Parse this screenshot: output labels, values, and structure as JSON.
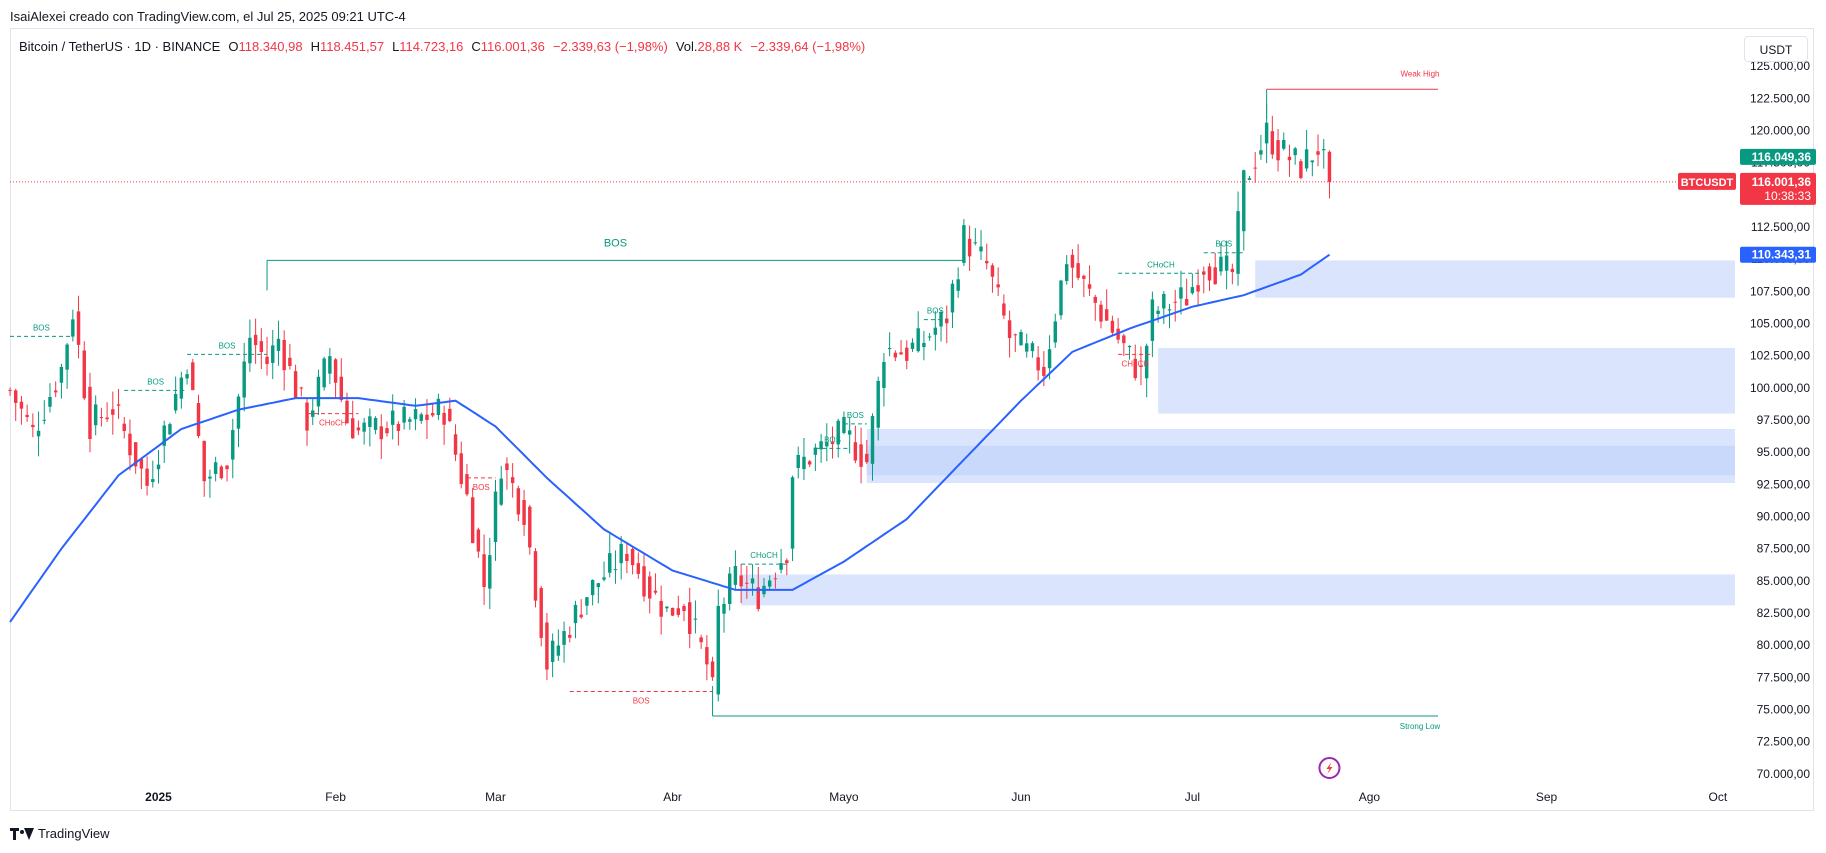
{
  "credit": "IsaiAlexei creado con TradingView.com, el Jul 25, 2025 09:21 UTC-4",
  "legend": {
    "symbol": "Bitcoin / TetherUS · 1D · BINANCE",
    "o_label": "O",
    "o_value": "118.340,98",
    "h_label": "H",
    "h_value": "118.451,57",
    "l_label": "L",
    "l_value": "114.723,16",
    "c_label": "C",
    "c_value": "116.001,36",
    "change": "−2.339,63 (−1,98%)",
    "vol_label": "Vol.",
    "vol_value": "28,88 K",
    "vol_change": "−2.339,64 (−1,98%)"
  },
  "currency_button": "USDT",
  "brand": "TradingView",
  "colors": {
    "up": "#089981",
    "down": "#f23645",
    "ma": "#2962ff",
    "zone": "#bbd0fb",
    "price_line": "#f23645"
  },
  "chart_data": {
    "type": "candlestick",
    "ylim": [
      68750,
      126250
    ],
    "y_ticks": [
      70000,
      72500,
      75000,
      77500,
      80000,
      82500,
      85000,
      87500,
      90000,
      92500,
      95000,
      97500,
      100000,
      102500,
      105000,
      107500,
      110000,
      112500,
      115000,
      117500,
      120000,
      122500,
      125000
    ],
    "y_tick_labels": [
      "70.000,00",
      "72.500,00",
      "75.000,00",
      "77.500,00",
      "80.000,00",
      "82.500,00",
      "85.000,00",
      "87.500,00",
      "90.000,00",
      "92.500,00",
      "95.000,00",
      "97.500,00",
      "100.000,00",
      "102.500,00",
      "105.000,00",
      "107.500,00",
      "110.000,00",
      "112.500,00",
      "115.000,00",
      "117.500,00",
      "120.000,00",
      "122.500,00",
      "125.000,00"
    ],
    "x_range": [
      "2024-12-06",
      "2025-10-04"
    ],
    "x_ticks": [
      {
        "date": "2025-01-01",
        "label": "2025"
      },
      {
        "date": "2025-02-01",
        "label": "Feb"
      },
      {
        "date": "2025-03-01",
        "label": "Mar"
      },
      {
        "date": "2025-04-01",
        "label": "Abr"
      },
      {
        "date": "2025-05-01",
        "label": "Mayo"
      },
      {
        "date": "2025-06-01",
        "label": "Jun"
      },
      {
        "date": "2025-07-01",
        "label": "Jul"
      },
      {
        "date": "2025-08-01",
        "label": "Ago"
      },
      {
        "date": "2025-09-01",
        "label": "Sep"
      },
      {
        "date": "2025-10-01",
        "label": "Oct"
      }
    ],
    "close_anchors": [
      [
        "2024-12-06",
        99800
      ],
      [
        "2024-12-10",
        96500
      ],
      [
        "2024-12-15",
        101500
      ],
      [
        "2024-12-17",
        106000
      ],
      [
        "2024-12-20",
        97200
      ],
      [
        "2024-12-24",
        98500
      ],
      [
        "2024-12-30",
        92500
      ],
      [
        "2025-01-06",
        102200
      ],
      [
        "2025-01-09",
        92800
      ],
      [
        "2025-01-13",
        94500
      ],
      [
        "2025-01-17",
        104000
      ],
      [
        "2025-01-20",
        102000
      ],
      [
        "2025-01-22",
        103800
      ],
      [
        "2025-01-27",
        97500
      ],
      [
        "2025-01-31",
        102500
      ],
      [
        "2025-02-03",
        97500
      ],
      [
        "2025-02-05",
        96600
      ],
      [
        "2025-02-15",
        97500
      ],
      [
        "2025-02-20",
        98300
      ],
      [
        "2025-02-24",
        91500
      ],
      [
        "2025-02-27",
        84700
      ],
      [
        "2025-03-02",
        94200
      ],
      [
        "2025-03-06",
        90500
      ],
      [
        "2025-03-10",
        78600
      ],
      [
        "2025-03-13",
        80800
      ],
      [
        "2025-03-17",
        84000
      ],
      [
        "2025-03-24",
        87400
      ],
      [
        "2025-03-28",
        84300
      ],
      [
        "2025-03-31",
        82600
      ],
      [
        "2025-04-03",
        83300
      ],
      [
        "2025-04-07",
        78500
      ],
      [
        "2025-04-08",
        76300
      ],
      [
        "2025-04-09",
        82600
      ],
      [
        "2025-04-12",
        85300
      ],
      [
        "2025-04-16",
        84000
      ],
      [
        "2025-04-21",
        87500
      ],
      [
        "2025-04-22",
        93500
      ],
      [
        "2025-04-25",
        94700
      ],
      [
        "2025-05-01",
        96500
      ],
      [
        "2025-05-05",
        94300
      ],
      [
        "2025-05-08",
        103000
      ],
      [
        "2025-05-12",
        102800
      ],
      [
        "2025-05-15",
        103700
      ],
      [
        "2025-05-19",
        105600
      ],
      [
        "2025-05-22",
        111700
      ],
      [
        "2025-05-26",
        109500
      ],
      [
        "2025-05-30",
        103900
      ],
      [
        "2025-06-05",
        101500
      ],
      [
        "2025-06-09",
        110200
      ],
      [
        "2025-06-11",
        108600
      ],
      [
        "2025-06-17",
        104500
      ],
      [
        "2025-06-22",
        101000
      ],
      [
        "2025-06-24",
        105900
      ],
      [
        "2025-06-30",
        107100
      ],
      [
        "2025-07-03",
        109600
      ],
      [
        "2025-07-08",
        108900
      ],
      [
        "2025-07-10",
        116000
      ],
      [
        "2025-07-14",
        119800
      ],
      [
        "2025-07-16",
        118600
      ],
      [
        "2025-07-20",
        117200
      ],
      [
        "2025-07-23",
        118700
      ],
      [
        "2025-07-25",
        116001
      ]
    ],
    "last_candle": {
      "date": "2025-07-25",
      "open": 118340.98,
      "high": 118451.57,
      "low": 114723.16,
      "close": 116001.36
    },
    "ma_anchors": [
      [
        "2024-12-06",
        81800
      ],
      [
        "2024-12-15",
        87500
      ],
      [
        "2024-12-25",
        93200
      ],
      [
        "2025-01-05",
        96800
      ],
      [
        "2025-01-15",
        98300
      ],
      [
        "2025-01-25",
        99200
      ],
      [
        "2025-02-05",
        99200
      ],
      [
        "2025-02-15",
        98600
      ],
      [
        "2025-02-22",
        99000
      ],
      [
        "2025-03-01",
        97000
      ],
      [
        "2025-03-10",
        93000
      ],
      [
        "2025-03-20",
        89000
      ],
      [
        "2025-04-01",
        85800
      ],
      [
        "2025-04-12",
        84300
      ],
      [
        "2025-04-22",
        84300
      ],
      [
        "2025-05-01",
        86500
      ],
      [
        "2025-05-12",
        89800
      ],
      [
        "2025-05-20",
        93500
      ],
      [
        "2025-06-01",
        99000
      ],
      [
        "2025-06-10",
        102800
      ],
      [
        "2025-06-20",
        104600
      ],
      [
        "2025-07-01",
        106300
      ],
      [
        "2025-07-10",
        107200
      ],
      [
        "2025-07-20",
        108800
      ],
      [
        "2025-07-25",
        110343
      ]
    ],
    "zones": [
      {
        "from": "2025-07-12",
        "to": "2025-10-04",
        "low": 107000,
        "high": 109900
      },
      {
        "from": "2025-06-25",
        "to": "2025-10-04",
        "low": 98000,
        "high": 103100
      },
      {
        "from": "2025-05-05",
        "to": "2025-10-04",
        "low": 93200,
        "high": 96800
      },
      {
        "from": "2025-05-05",
        "to": "2025-10-04",
        "low": 92600,
        "high": 95500
      },
      {
        "from": "2025-04-13",
        "to": "2025-10-04",
        "low": 83100,
        "high": 85500
      }
    ],
    "structure_lines": [
      {
        "from": "2025-01-20",
        "to": "2025-05-22",
        "y": 109900,
        "label": "BOS",
        "style": "solid",
        "color": "up",
        "label_pos": "center"
      },
      {
        "from": "2024-12-06",
        "to": "2024-12-17",
        "y": 104000,
        "label": "BOS",
        "style": "dashed",
        "color": "up"
      },
      {
        "from": "2024-12-26",
        "to": "2025-01-06",
        "y": 99800,
        "label": "BOS",
        "style": "dashed",
        "color": "up"
      },
      {
        "from": "2025-01-06",
        "to": "2025-01-20",
        "y": 102600,
        "label": "BOS",
        "style": "dashed",
        "color": "up"
      },
      {
        "from": "2025-01-27",
        "to": "2025-02-05",
        "y": 98000,
        "label": "CHoCH",
        "style": "dashed",
        "color": "down",
        "label_below": true
      },
      {
        "from": "2025-02-24",
        "to": "2025-03-01",
        "y": 93000,
        "label": "BOS",
        "style": "dashed",
        "color": "down",
        "label_below": true
      },
      {
        "from": "2025-03-14",
        "to": "2025-04-08",
        "y": 76400,
        "label": "BOS",
        "style": "dashed",
        "color": "down",
        "label_below": true
      },
      {
        "from": "2025-04-13",
        "to": "2025-04-21",
        "y": 86300,
        "label": "CHoCH",
        "style": "dashed",
        "color": "up"
      },
      {
        "from": "2025-04-26",
        "to": "2025-05-02",
        "y": 95300,
        "label": "BOS",
        "style": "dashed",
        "color": "up"
      },
      {
        "from": "2025-05-01",
        "to": "2025-05-05",
        "y": 97200,
        "label": "BOS",
        "style": "dashed",
        "color": "up"
      },
      {
        "from": "2025-05-15",
        "to": "2025-05-19",
        "y": 105300,
        "label": "BOS",
        "style": "dashed",
        "color": "up"
      },
      {
        "from": "2025-06-18",
        "to": "2025-07-03",
        "y": 108900,
        "label": "CHoCH",
        "style": "dashed",
        "color": "up"
      },
      {
        "from": "2025-06-18",
        "to": "2025-06-24",
        "y": 102600,
        "label": "CHoCH",
        "style": "dashed",
        "color": "down",
        "label_below": true
      },
      {
        "from": "2025-07-03",
        "to": "2025-07-10",
        "y": 110500,
        "label": "BOS",
        "style": "dashed",
        "color": "up"
      }
    ],
    "weak_high": {
      "from": "2025-07-14",
      "to": "2025-08-13",
      "y": 123200,
      "label": "Weak High"
    },
    "strong_low": {
      "from": "2025-04-08",
      "to": "2025-08-13",
      "y": 74500,
      "label": "Strong Low"
    },
    "price_tags": [
      {
        "value": 116049.36,
        "label": "116.049,36",
        "color": "#089981"
      },
      {
        "value": 116001.36,
        "label": "116.001,36",
        "color": "#f23645",
        "ticker": "BTCUSDT",
        "countdown": "10:38:33"
      },
      {
        "value": 110343.31,
        "label": "110.343,31",
        "color": "#2962ff"
      }
    ]
  }
}
